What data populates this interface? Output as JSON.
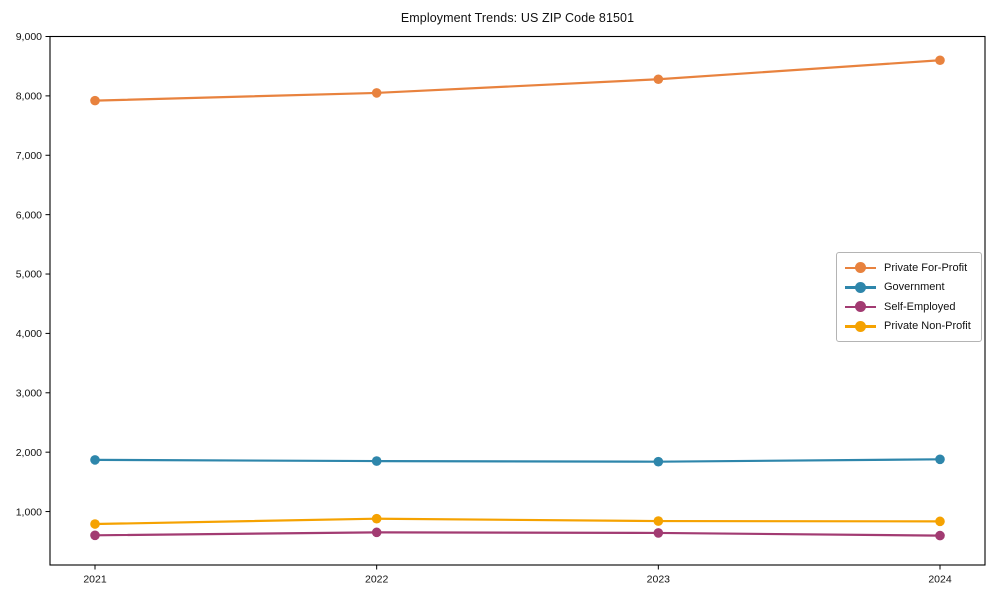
{
  "chart_data": {
    "type": "line",
    "title": "Employment Trends: US ZIP Code 81501",
    "xlabel": "",
    "ylabel": "",
    "x": [
      2021,
      2022,
      2023,
      2024
    ],
    "x_tick_labels": [
      "2021",
      "2022",
      "2023",
      "2024"
    ],
    "y_ticks": [
      1000,
      2000,
      3000,
      4000,
      5000,
      6000,
      7000,
      8000,
      9000
    ],
    "y_tick_labels": [
      "1,000",
      "2,000",
      "3,000",
      "4,000",
      "5,000",
      "6,000",
      "7,000",
      "8,000",
      "9,000"
    ],
    "ylim": [
      100,
      9000
    ],
    "grid": false,
    "legend_position": "center right",
    "marker": "circle",
    "series": [
      {
        "name": "Private For-Profit",
        "color": "#E8823E",
        "values": [
          7920,
          8050,
          8280,
          8600
        ]
      },
      {
        "name": "Government",
        "color": "#2E86AB",
        "values": [
          1870,
          1850,
          1840,
          1880
        ]
      },
      {
        "name": "Self-Employed",
        "color": "#A23B72",
        "values": [
          600,
          650,
          640,
          595
        ]
      },
      {
        "name": "Private Non-Profit",
        "color": "#F5A201",
        "values": [
          790,
          880,
          840,
          835
        ]
      }
    ]
  }
}
